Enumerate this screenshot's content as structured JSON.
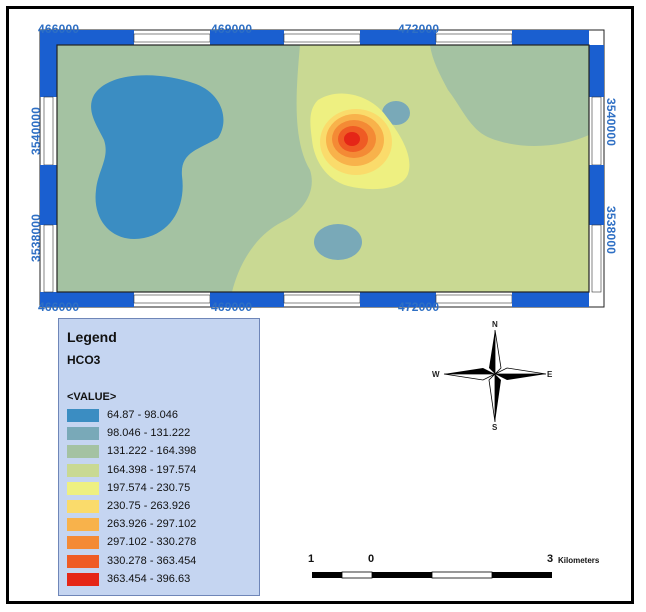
{
  "map": {
    "x_ticks": [
      "466000",
      "469000",
      "472000"
    ],
    "y_ticks": [
      "3540000",
      "3538000"
    ]
  },
  "legend": {
    "title": "Legend",
    "layer": "HCO3",
    "field": "<VALUE>",
    "items": [
      {
        "label": "64.87 - 98.046",
        "color": "#3b8dc2"
      },
      {
        "label": "98.046 - 131.222",
        "color": "#79a9b8"
      },
      {
        "label": "131.222 - 164.398",
        "color": "#a4c2a2"
      },
      {
        "label": "164.398 - 197.574",
        "color": "#c9d993"
      },
      {
        "label": "197.574 - 230.75",
        "color": "#eef081"
      },
      {
        "label": "230.75 - 263.926",
        "color": "#fadb6b"
      },
      {
        "label": "263.926 - 297.102",
        "color": "#f8b24b"
      },
      {
        "label": "297.102 - 330.278",
        "color": "#f48a35"
      },
      {
        "label": "330.278 - 363.454",
        "color": "#ef5b24"
      },
      {
        "label": "363.454 - 396.63",
        "color": "#e52617"
      }
    ]
  },
  "compass": {
    "n": "N",
    "s": "S",
    "e": "E",
    "w": "W"
  },
  "scale": {
    "left": "1",
    "zero": "0",
    "right": "3",
    "unit": "Kilometers"
  }
}
